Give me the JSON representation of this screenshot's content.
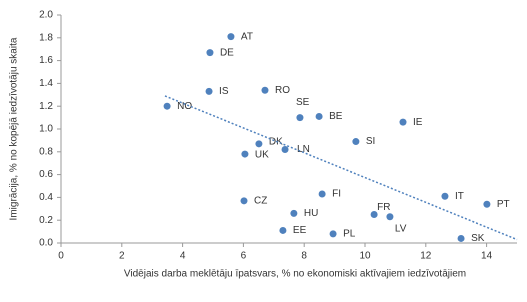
{
  "chart_data": {
    "type": "scatter",
    "x_label": "Vidējais darba meklētāju īpatsvars, % no ekonomiski aktīvajiem iedzīvotājiem",
    "y_label": "Imigrācija, % no kopējā iedzīvotāju skaita",
    "xlim": [
      0,
      15
    ],
    "ylim": [
      0,
      2.0
    ],
    "xticks": [
      0,
      2,
      4,
      6,
      8,
      10,
      12,
      14
    ],
    "yticks": [
      {
        "value": 0,
        "label": "0.0"
      },
      {
        "value": 0.2,
        "label": "0.2"
      },
      {
        "value": 0.4,
        "label": "0.4"
      },
      {
        "value": 0.6,
        "label": "0.6"
      },
      {
        "value": 0.8,
        "label": "0.8"
      },
      {
        "value": 1.0,
        "label": "1.0"
      },
      {
        "value": 1.2,
        "label": "1.2"
      },
      {
        "value": 1.4,
        "label": "1.4"
      },
      {
        "value": 1.6,
        "label": "1.6"
      },
      {
        "value": 1.8,
        "label": "1.8"
      },
      {
        "value": 2.0,
        "label": "2.0"
      }
    ],
    "grid": false,
    "series": [
      {
        "color": "#4f81bd",
        "labels": [
          "AT",
          "DE",
          "IS",
          "RO",
          "SE",
          "BE",
          "IE",
          "NO",
          "SI",
          "DK",
          "LN",
          "UK",
          "CZ",
          "FI",
          "IT",
          "PT",
          "HU",
          "FR",
          "LV",
          "EE",
          "PL",
          "SK"
        ],
        "x": [
          5.59,
          4.9,
          4.87,
          6.71,
          7.86,
          8.49,
          11.25,
          3.49,
          9.7,
          6.51,
          7.37,
          6.05,
          6.02,
          8.59,
          12.63,
          14.01,
          7.66,
          10.3,
          10.82,
          7.3,
          8.95,
          13.16
        ],
        "values": [
          1.81,
          1.67,
          1.33,
          1.34,
          1.1,
          1.11,
          1.06,
          1.2,
          0.89,
          0.87,
          0.82,
          0.78,
          0.37,
          0.43,
          0.41,
          0.34,
          0.26,
          0.25,
          0.23,
          0.11,
          0.08,
          0.04
        ]
      },
      {
        "type": "line",
        "color": "#4f81bd",
        "x": [
          3.42,
          15
        ],
        "values": [
          1.29,
          0.03
        ]
      }
    ]
  }
}
